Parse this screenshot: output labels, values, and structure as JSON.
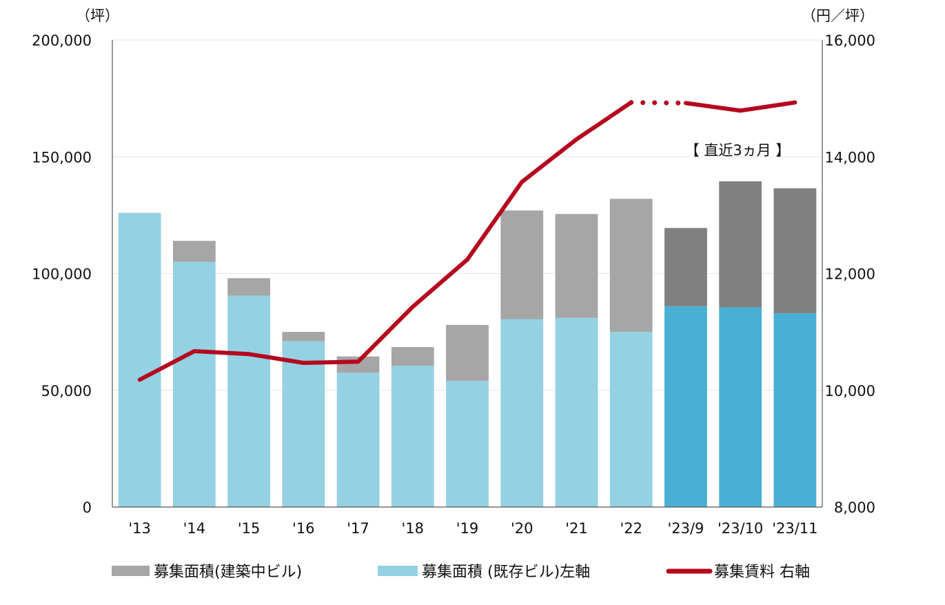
{
  "chart_data": {
    "type": "bar",
    "categories": [
      "'13",
      "'14",
      "'15",
      "'16",
      "'17",
      "'18",
      "'19",
      "'20",
      "'21",
      "'22",
      "'23/9",
      "'23/10",
      "'23/11"
    ],
    "series": [
      {
        "name": "募集面積 (既存ビル)左軸",
        "axis": "left",
        "kind": "stacked-bar",
        "values": [
          126000,
          105000,
          90500,
          71000,
          57500,
          60500,
          54000,
          80500,
          81000,
          75000,
          86000,
          85500,
          83000
        ]
      },
      {
        "name": "募集面積(建築中ビル)",
        "axis": "left",
        "kind": "stacked-bar",
        "values": [
          0,
          9000,
          7500,
          4000,
          7000,
          8000,
          24000,
          46500,
          44500,
          57000,
          33500,
          54000,
          53500
        ]
      },
      {
        "name": "募集賃料 右軸",
        "axis": "right",
        "kind": "line",
        "values": [
          10180,
          10670,
          10620,
          10470,
          10490,
          11430,
          12240,
          13570,
          14300,
          14930,
          14920,
          14790,
          14930
        ],
        "dotted_between": [
          9,
          10
        ]
      }
    ],
    "colors": {
      "existing": "#94d1e3",
      "existing_recent": "#49b0d3",
      "construction": "#a6a6a6",
      "construction_recent": "#808080",
      "rent": "#b5071f",
      "grid": "#e6e6e6",
      "axis": "#555555"
    },
    "recent_from_index": 10,
    "left_axis": {
      "unit_label": "（坪）",
      "ylim": [
        0,
        200000
      ],
      "ticks": [
        "0",
        "50,000",
        "100,000",
        "150,000",
        "200,000"
      ],
      "tick_values": [
        0,
        50000,
        100000,
        150000,
        200000
      ]
    },
    "right_axis": {
      "unit_label": "（円／坪）",
      "ylim": [
        8000,
        16000
      ],
      "ticks": [
        "8,000",
        "10,000",
        "12,000",
        "14,000",
        "16,000"
      ],
      "tick_values": [
        8000,
        10000,
        12000,
        14000,
        16000
      ]
    },
    "annotation": "【 直近3ヵ月 】",
    "legend": [
      {
        "label": "募集面積(建築中ビル)",
        "color": "#a6a6a6",
        "kind": "box"
      },
      {
        "label": "募集面積 (既存ビル)左軸",
        "color": "#94d1e3",
        "kind": "box"
      },
      {
        "label": "募集賃料 右軸",
        "color": "#b5071f",
        "kind": "line"
      }
    ],
    "legend_position": "bottom",
    "grid": true
  }
}
